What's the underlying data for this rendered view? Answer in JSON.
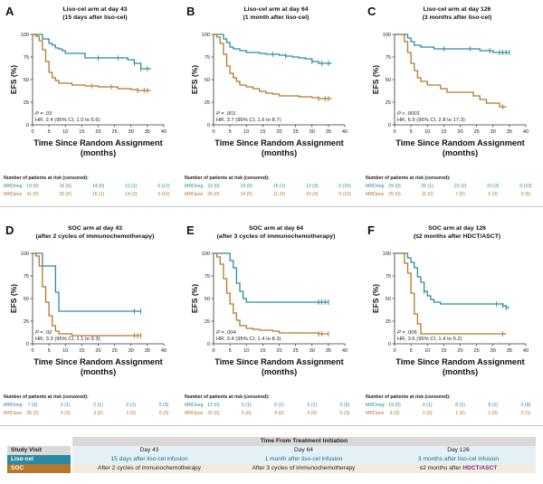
{
  "colors": {
    "mrd_neg": "#2a8aa3",
    "mrd_pos": "#b5772a"
  },
  "risk_header": "Number of patients at risk (censored):",
  "risk_labels": {
    "neg": "MRDneg",
    "pos": "MRDpos"
  },
  "chart_data": [
    {
      "type": "line",
      "letter": "A",
      "title": "Liso-cel arm at day 43",
      "subtitle": "(15 days after liso-cel)",
      "xlabel": "Time Since Random Assignment",
      "xlabel2": "(months)",
      "ylabel": "EFS (%)",
      "xlim": [
        0,
        40
      ],
      "ylim": [
        0,
        100
      ],
      "xticks": [
        "0",
        "5",
        "10",
        "15",
        "20",
        "25",
        "30",
        "35",
        "40"
      ],
      "yticks": [
        "0",
        "25",
        "50",
        "75",
        "100"
      ],
      "stat_p": "P = .03",
      "stat_hr": "HR, 2.4 (95% CI, 1.0 to 5.6)",
      "series": [
        {
          "key": "neg",
          "x": [
            0,
            2,
            3,
            4,
            5,
            6,
            7,
            8,
            9,
            10,
            12,
            14,
            16,
            18,
            20,
            22,
            24,
            27,
            29,
            31,
            33,
            34,
            35,
            36
          ],
          "y": [
            100,
            100,
            95,
            95,
            90,
            88,
            85,
            84,
            82,
            79,
            79,
            79,
            74,
            74,
            74,
            74,
            74,
            74,
            72,
            68,
            62,
            62,
            62,
            62
          ],
          "censor_x": [
            20,
            26,
            31,
            33,
            35
          ]
        },
        {
          "key": "pos",
          "x": [
            0,
            1,
            2,
            3,
            4,
            5,
            6,
            7,
            8,
            9,
            10,
            12,
            14,
            16,
            18,
            20,
            22,
            24,
            26,
            28,
            30,
            32,
            34,
            36
          ],
          "y": [
            100,
            98,
            93,
            83,
            70,
            58,
            52,
            49,
            46,
            46,
            46,
            44,
            44,
            43,
            43,
            42,
            42,
            42,
            40,
            40,
            39,
            38,
            38,
            38
          ],
          "censor_x": [
            18,
            24,
            32,
            34,
            35
          ]
        }
      ],
      "risk": {
        "neg": [
          "19 (0)",
          "16 (0)",
          "14 (0)",
          "12 (1)",
          "0 (12)"
        ],
        "pos": [
          "41 (0)",
          "20 (0)",
          "16 (1)",
          "14 (2)",
          "0 (16)"
        ]
      }
    },
    {
      "type": "line",
      "letter": "B",
      "title": "Liso-cel arm at day 64",
      "subtitle": "(1 month after liso-cel)",
      "xlabel": "Time Since Random Assignment",
      "xlabel2": "(months)",
      "ylabel": "EFS (%)",
      "xlim": [
        0,
        40
      ],
      "ylim": [
        0,
        100
      ],
      "xticks": [
        "0",
        "5",
        "10",
        "15",
        "20",
        "25",
        "30",
        "35",
        "40"
      ],
      "yticks": [
        "0",
        "25",
        "50",
        "75",
        "100"
      ],
      "stat_p": "P = .001",
      "stat_hr": "HR, 3.7 (95% CI, 1.6 to 8.7)",
      "series": [
        {
          "key": "neg",
          "x": [
            0,
            2,
            3,
            4,
            5,
            6,
            8,
            10,
            12,
            14,
            16,
            18,
            20,
            22,
            24,
            26,
            28,
            30,
            32,
            34,
            36
          ],
          "y": [
            100,
            100,
            95,
            91,
            86,
            84,
            82,
            80,
            80,
            79,
            78,
            78,
            77,
            76,
            75,
            74,
            73,
            70,
            68,
            68,
            68
          ],
          "censor_x": [
            18,
            22,
            30,
            33,
            35
          ]
        },
        {
          "key": "pos",
          "x": [
            0,
            1,
            2,
            3,
            4,
            5,
            6,
            7,
            8,
            10,
            12,
            14,
            16,
            18,
            20,
            22,
            24,
            26,
            28,
            30,
            32,
            34,
            36
          ],
          "y": [
            100,
            97,
            90,
            78,
            65,
            57,
            52,
            48,
            44,
            42,
            40,
            37,
            35,
            34,
            32,
            32,
            32,
            31,
            31,
            30,
            29,
            29,
            29
          ],
          "censor_x": [
            32,
            34,
            35
          ]
        }
      ],
      "risk": {
        "neg": [
          "22 (0)",
          "19 (0)",
          "16 (1)",
          "13 (3)",
          "0 (15)"
        ],
        "pos": [
          "35 (0)",
          "14 (0)",
          "11 (0)",
          "10 (0)",
          "0 (10)"
        ]
      }
    },
    {
      "type": "line",
      "letter": "C",
      "title": "Liso-cel arm at day 126",
      "subtitle": "(3 months after liso-cel)",
      "xlabel": "Time Since Random Assignment",
      "xlabel2": "(months)",
      "ylabel": "EFS (%)",
      "xlim": [
        0,
        40
      ],
      "ylim": [
        0,
        100
      ],
      "xticks": [
        "0",
        "5",
        "10",
        "15",
        "20",
        "25",
        "30",
        "35",
        "40"
      ],
      "yticks": [
        "0",
        "25",
        "50",
        "75",
        "100"
      ],
      "stat_p": "P < .0001",
      "stat_hr": "HR, 6.9 (95% CI, 2.8 to 17.3)",
      "series": [
        {
          "key": "neg",
          "x": [
            0,
            3,
            4,
            5,
            6,
            8,
            10,
            12,
            14,
            16,
            18,
            20,
            22,
            24,
            26,
            28,
            30,
            32,
            34,
            35
          ],
          "y": [
            100,
            100,
            96,
            92,
            88,
            86,
            86,
            84,
            84,
            84,
            84,
            84,
            84,
            84,
            82,
            82,
            80,
            80,
            80,
            80
          ],
          "censor_x": [
            15,
            23,
            29,
            32,
            33,
            34,
            35
          ]
        },
        {
          "key": "pos",
          "x": [
            0,
            2,
            3,
            4,
            5,
            6,
            7,
            8,
            10,
            12,
            14,
            16,
            18,
            20,
            22,
            24,
            26,
            28,
            30,
            32,
            34
          ],
          "y": [
            100,
            100,
            92,
            80,
            68,
            60,
            52,
            48,
            44,
            44,
            40,
            36,
            36,
            36,
            36,
            32,
            28,
            24,
            24,
            20,
            20
          ],
          "censor_x": [
            33
          ]
        }
      ],
      "risk": {
        "neg": [
          "29 (0)",
          "25 (1)",
          "22 (2)",
          "21 (3)",
          "0 (23)"
        ],
        "pos": [
          "25 (0)",
          "11 (0)",
          "7 (0)",
          "5 (0)",
          "0 (5)"
        ]
      }
    },
    {
      "type": "line",
      "letter": "D",
      "title": "SOC arm at day 43",
      "subtitle": "(after 2 cycles of immunochemotherapy)",
      "xlabel": "Time Since Random Assignment",
      "xlabel2": "(months)",
      "ylabel": "EFS (%)",
      "xlim": [
        0,
        40
      ],
      "ylim": [
        0,
        100
      ],
      "xticks": [
        "0",
        "5",
        "10",
        "15",
        "20",
        "25",
        "30",
        "35",
        "40"
      ],
      "yticks": [
        "0",
        "25",
        "50",
        "75",
        "100"
      ],
      "stat_p": "P = .02",
      "stat_hr": "HR, 3.3 (95% CI, 1.1 to 9.3)",
      "series": [
        {
          "key": "neg",
          "x": [
            0,
            2,
            3,
            4,
            6,
            7,
            8,
            10,
            14,
            20,
            28,
            33
          ],
          "y": [
            100,
            100,
            86,
            86,
            86,
            57,
            36,
            36,
            36,
            36,
            36,
            36
          ],
          "censor_x": [
            31,
            33
          ]
        },
        {
          "key": "pos",
          "x": [
            0,
            1,
            2,
            3,
            4,
            5,
            6,
            7,
            8,
            10,
            12,
            14,
            16,
            20,
            24,
            28,
            30,
            32,
            33
          ],
          "y": [
            100,
            97,
            86,
            63,
            46,
            31,
            20,
            14,
            11,
            11,
            9,
            9,
            9,
            9,
            9,
            9,
            9,
            9,
            9
          ],
          "censor_x": [
            31,
            32,
            33
          ]
        }
      ],
      "risk": {
        "neg": [
          "7 (0)",
          "2 (1)",
          "2 (1)",
          "2 (1)",
          "0 (3)"
        ],
        "pos": [
          "35 (0)",
          "4 (0)",
          "3 (0)",
          "3 (0)",
          "0 (3)"
        ]
      }
    },
    {
      "type": "line",
      "letter": "E",
      "title": "SOC arm at day 64",
      "subtitle": "(after 3 cycles of immunochemotherapy)",
      "xlabel": "Time Since Random Assignment",
      "xlabel2": "(months)",
      "ylabel": "EFS (%)",
      "xlim": [
        0,
        40
      ],
      "ylim": [
        0,
        100
      ],
      "xticks": [
        "0",
        "5",
        "10",
        "15",
        "20",
        "25",
        "30",
        "35",
        "40"
      ],
      "yticks": [
        "0",
        "25",
        "50",
        "75",
        "100"
      ],
      "stat_p": "P = .004",
      "stat_hr": "HR, 3.4 (95% CI, 1.4 to 8.3)",
      "series": [
        {
          "key": "neg",
          "x": [
            0,
            4,
            5,
            6,
            7,
            8,
            9,
            10,
            12,
            16,
            20,
            24,
            28,
            32,
            35
          ],
          "y": [
            100,
            100,
            92,
            84,
            67,
            58,
            50,
            46,
            46,
            46,
            46,
            46,
            46,
            46,
            46
          ],
          "censor_x": [
            32,
            33,
            34,
            35
          ]
        },
        {
          "key": "pos",
          "x": [
            0,
            1,
            2,
            3,
            4,
            5,
            6,
            7,
            8,
            10,
            12,
            14,
            16,
            18,
            20,
            24,
            28,
            32,
            35
          ],
          "y": [
            100,
            96,
            88,
            72,
            56,
            44,
            34,
            26,
            20,
            17,
            16,
            15,
            15,
            14,
            12,
            12,
            12,
            11,
            11
          ],
          "censor_x": [
            32,
            33,
            35
          ]
        }
      ],
      "risk": {
        "neg": [
          "12 (0)",
          "5 (1)",
          "5 (1)",
          "5 (1)",
          "0 (6)"
        ],
        "pos": [
          "32 (0)",
          "5 (0)",
          "4 (0)",
          "4 (0)",
          "0 (3)"
        ]
      }
    },
    {
      "type": "line",
      "letter": "F",
      "title": "SOC arm at day 126",
      "subtitle": "(≤2 months after HDCT/ASCT)",
      "xlabel": "Time Since Random Assignment",
      "xlabel2": "(months)",
      "ylabel": "EFS (%)",
      "xlim": [
        0,
        40
      ],
      "ylim": [
        0,
        100
      ],
      "xticks": [
        "0",
        "5",
        "10",
        "15",
        "20",
        "25",
        "30",
        "35",
        "40"
      ],
      "yticks": [
        "0",
        "25",
        "50",
        "75",
        "100"
      ],
      "stat_p": "P = .005",
      "stat_hr": "HR, 3.6 (95% CI, 1.4 to 9.2)",
      "series": [
        {
          "key": "neg",
          "x": [
            0,
            3,
            4,
            5,
            6,
            7,
            8,
            9,
            10,
            11,
            12,
            14,
            16,
            18,
            20,
            22,
            24,
            26,
            28,
            30,
            32,
            33,
            34,
            35
          ],
          "y": [
            100,
            100,
            95,
            90,
            84,
            74,
            68,
            58,
            53,
            49,
            46,
            44,
            44,
            44,
            44,
            44,
            44,
            44,
            44,
            44,
            44,
            42,
            40,
            40
          ],
          "censor_x": [
            9,
            31,
            33,
            34
          ]
        },
        {
          "key": "pos",
          "x": [
            0,
            2,
            3,
            4,
            5,
            6,
            7,
            8,
            12,
            16,
            20,
            24,
            28,
            32,
            34
          ],
          "y": [
            100,
            100,
            89,
            78,
            56,
            33,
            22,
            11,
            11,
            11,
            11,
            11,
            11,
            11,
            11
          ],
          "censor_x": [
            33
          ]
        }
      ],
      "risk": {
        "neg": [
          "19 (0)",
          "9 (1)",
          "8 (1)",
          "8 (1)",
          "0 (8)"
        ],
        "pos": [
          "9 (0)",
          "1 (0)",
          "1 (0)",
          "1 (0)",
          "0 (1)"
        ]
      }
    }
  ],
  "footer": {
    "header": "Time From Treatment Initiation",
    "col_label": "Study Visit",
    "days": [
      "Day 43",
      "Day 64",
      "Day 126"
    ],
    "liso_label": "Liso-cel",
    "liso": [
      "15 days after liso-cel infusion",
      "1 month after liso-cel infusion",
      "3 months after liso-cel infusion"
    ],
    "soc_label": "SOC",
    "soc": [
      "After 2 cycles of immunochemotherapy",
      "After 3 cycles of immunochemotherapy"
    ],
    "soc3_prefix": "≤2 months after ",
    "soc3_highlight": "HDCT/ASCT"
  }
}
